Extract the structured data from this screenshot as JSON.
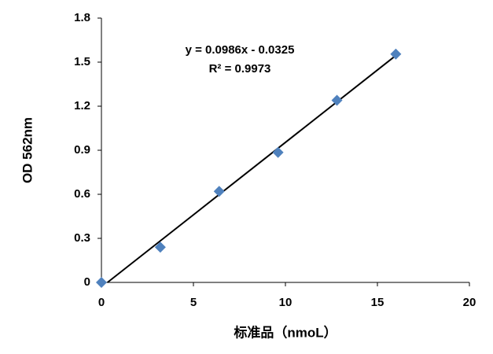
{
  "chart_data": {
    "type": "scatter",
    "x_label": "标准品（nmoL）",
    "y_label": "OD 562nm",
    "annotations": [
      "y = 0.0986x - 0.0325",
      "R² = 0.9973"
    ],
    "series": [
      {
        "color": "#4f81bd",
        "x": [
          0,
          3.2,
          6.4,
          9.6,
          12.8,
          16
        ],
        "values": [
          0,
          0.24,
          0.62,
          0.885,
          1.24,
          1.555
        ]
      }
    ],
    "trendline": {
      "slope": 0.0986,
      "intercept": -0.0325,
      "color": "#000000"
    },
    "xlim": [
      0,
      20
    ],
    "xticks": [
      0,
      5,
      10,
      15,
      20
    ],
    "ylim": [
      0,
      1.8
    ],
    "yticks": [
      0,
      0.3,
      0.6,
      0.9,
      1.2,
      1.5,
      1.8
    ],
    "grid": false
  }
}
